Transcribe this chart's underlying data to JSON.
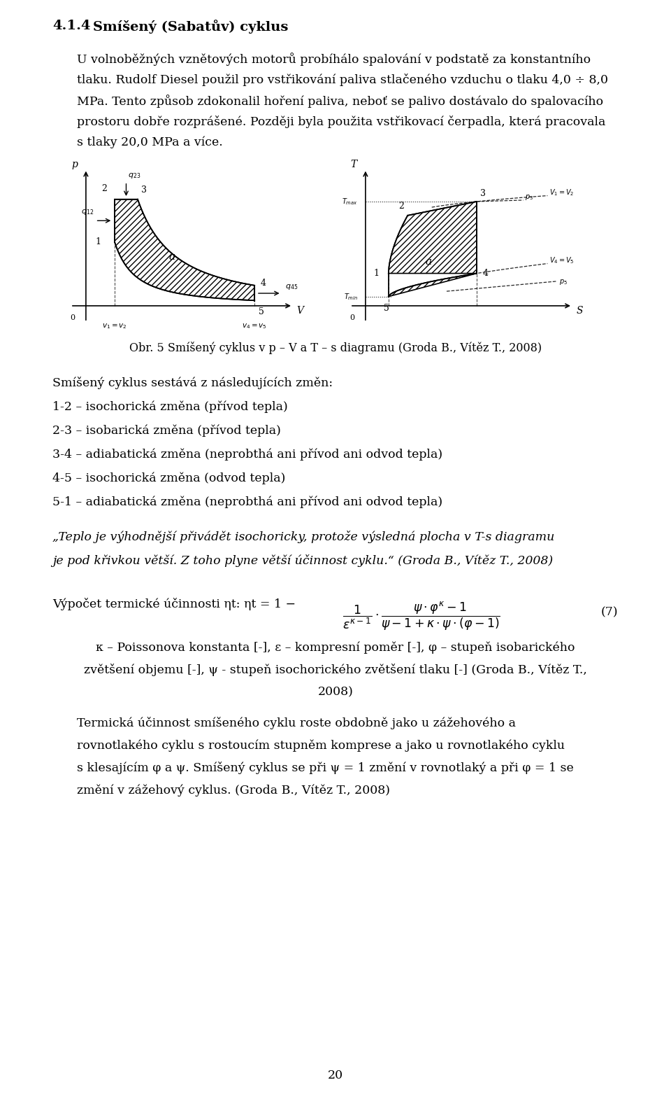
{
  "title_num": "4.1.4",
  "title_text": "Smíšený (Sabatův) cyklus",
  "para1_lines": [
    "U volnoběžných vznětových motorů probíhálo spalování v podstatě za konstantního",
    "tlaku. Rudolf Diesel použil pro vstřikování paliva stlačeného vzduchu o tlaku 4,0 ÷ 8,0",
    "MPa. Tento způsob zdokonalil hoření paliva, neboť se palivo dostávalo do spalovacího",
    "prostoru dobře rozprášené. Později byla použita vstřikovací čerpadla, která pracovala",
    "s tlaky 20,0 MPa a více."
  ],
  "fig_caption": "Obr. 5 Smíšený cyklus v p – V a T – s diagramu (Groda B., Vítěz T., 2008)",
  "cycle_desc": "Smíšený cyklus sestává z následujících změn:",
  "cycle_steps": [
    "1-2 – isochorická změna (přívod tepla)",
    "2-3 – isobarická změna (přívod tepla)",
    "3-4 – adiabatická změna (neprobthá ani přívod ani odvod tepla)",
    "4-5 – isochorická změna (odvod tepla)",
    "5-1 – adiabatická změna (neprobthá ani přívod ani odvod tepla)"
  ],
  "cycle_steps_display": [
    "1-2 – isochorická změna (přívod tepla)",
    "2-3 – isobarická změna (přívod tepla)",
    "3-4 – adiabatická změna (neprobthá ani přívod ani odvod tepla)",
    "4-5 – isochorická změna (odvod tepla)",
    "5-1 – adiabatická změna (neprobthá ani přívod ani odvod tepla)"
  ],
  "quote_lines": [
    "„Teplo je výhodnější přivádět isochoricky, protože výsledná plocha v T-s diagramu",
    "je pod křivkou větší. Z toho plyne větší účinnost cyklu.“ (Groda B., Vítěz T., 2008)"
  ],
  "formula_text": "Výpočet termické účinnosti ηt: ηt = 1 −",
  "formula_number": "(7)",
  "kappa_lines": [
    "κ – Poissonova konstanta [-], ε – kompresní poměr [-], φ – stupeň isobarického",
    "zvětšení objemu [-], ψ - stupeň isochorického zvětšení tlaku [-] (Groda B., Vítěz T.,",
    "2008)"
  ],
  "thermal_lines": [
    "Termická účinnost smíšeného cyklu roste obdobně jako u zážehového a",
    "rovnotlakého cyklu s rostoucím stupněm komprese a jako u rovnotlakého cyklu",
    "s klesajícím φ a ψ. Smíšený cyklus se při ψ = 1 změní v rovnotlaký a při φ = 1 se",
    "změní v zážehový cyklus. (Groda B., Vítěz T., 2008)"
  ],
  "page_number": "20",
  "bg_color": "#ffffff"
}
